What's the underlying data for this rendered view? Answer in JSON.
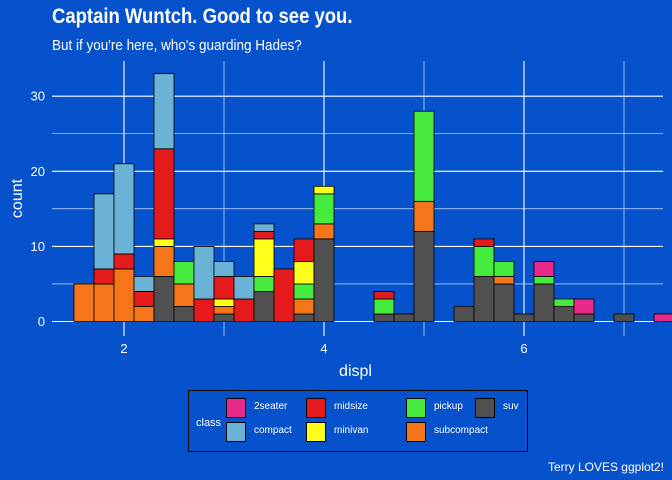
{
  "title": "Captain Wuntch. Good to see you.",
  "subtitle": "But if you're here, who's guarding Hades?",
  "caption": "Terry LOVES ggplot2!",
  "colors": {
    "background": "#0552CC",
    "grid": "#ffffff",
    "bar_outline": "#000000",
    "classes": {
      "2seater": "#E7298A",
      "compact": "#6BB3D6",
      "midsize": "#E41A1C",
      "minivan": "#FFFF1A",
      "pickup": "#47EB3D",
      "subcompact": "#F57619",
      "suv": "#505050"
    }
  },
  "legend": {
    "title": "class",
    "position": "bottom",
    "items": [
      {
        "key": "2seater",
        "label": "2seater"
      },
      {
        "key": "compact",
        "label": "compact"
      },
      {
        "key": "midsize",
        "label": "midsize"
      },
      {
        "key": "minivan",
        "label": "minivan"
      },
      {
        "key": "pickup",
        "label": "pickup"
      },
      {
        "key": "subcompact",
        "label": "subcompact"
      },
      {
        "key": "suv",
        "label": "suv"
      }
    ]
  },
  "chart_data": {
    "type": "bar",
    "subtype": "stacked histogram",
    "xlabel": "displ",
    "ylabel": "count",
    "xlim": [
      1.4,
      7.4
    ],
    "ylim": [
      0,
      34.7
    ],
    "xticks": [
      2,
      4,
      6
    ],
    "yticks": [
      0,
      10,
      20,
      30
    ],
    "grid": true,
    "binwidth": 0.2,
    "stack_order": [
      "2seater",
      "compact",
      "midsize",
      "minivan",
      "pickup",
      "subcompact",
      "suv"
    ],
    "bins": [
      {
        "x": 1.6,
        "subcompact": 5
      },
      {
        "x": 1.8,
        "compact": 10,
        "midsize": 2,
        "subcompact": 5
      },
      {
        "x": 2.0,
        "compact": 12,
        "midsize": 2,
        "subcompact": 7
      },
      {
        "x": 2.2,
        "compact": 2,
        "midsize": 2,
        "subcompact": 2
      },
      {
        "x": 2.4,
        "compact": 10,
        "midsize": 12,
        "minivan": 1,
        "subcompact": 4,
        "suv": 6
      },
      {
        "x": 2.6,
        "pickup": 3,
        "subcompact": 3,
        "suv": 2
      },
      {
        "x": 2.8,
        "compact": 7,
        "midsize": 3
      },
      {
        "x": 3.0,
        "compact": 2,
        "midsize": 3,
        "minivan": 1,
        "subcompact": 1,
        "suv": 1
      },
      {
        "x": 3.2,
        "compact": 3,
        "midsize": 3
      },
      {
        "x": 3.4,
        "compact": 1,
        "midsize": 1,
        "minivan": 5,
        "pickup": 2,
        "suv": 4
      },
      {
        "x": 3.6,
        "midsize": 7
      },
      {
        "x": 3.8,
        "midsize": 3,
        "minivan": 3,
        "pickup": 2,
        "subcompact": 2,
        "suv": 1
      },
      {
        "x": 4.0,
        "minivan": 1,
        "pickup": 4,
        "subcompact": 2,
        "suv": 11
      },
      {
        "x": 4.2
      },
      {
        "x": 4.4
      },
      {
        "x": 4.6,
        "midsize": 1,
        "pickup": 2,
        "suv": 1
      },
      {
        "x": 4.8,
        "suv": 1
      },
      {
        "x": 5.0,
        "pickup": 12,
        "subcompact": 4,
        "suv": 12
      },
      {
        "x": 5.2
      },
      {
        "x": 5.4,
        "suv": 2
      },
      {
        "x": 5.6,
        "midsize": 1,
        "pickup": 4,
        "suv": 6
      },
      {
        "x": 5.8,
        "pickup": 2,
        "subcompact": 1,
        "suv": 5
      },
      {
        "x": 6.0,
        "suv": 1
      },
      {
        "x": 6.2,
        "2seater": 2,
        "pickup": 1,
        "subcompact": 0,
        "suv": 5
      },
      {
        "x": 6.4,
        "pickup": 1,
        "suv": 2
      },
      {
        "x": 6.6,
        "2seater": 2,
        "suv": 1
      },
      {
        "x": 6.8
      },
      {
        "x": 7.0,
        "suv": 1
      },
      {
        "x": 7.2
      },
      {
        "x": 7.4,
        "2seater": 1
      }
    ]
  }
}
